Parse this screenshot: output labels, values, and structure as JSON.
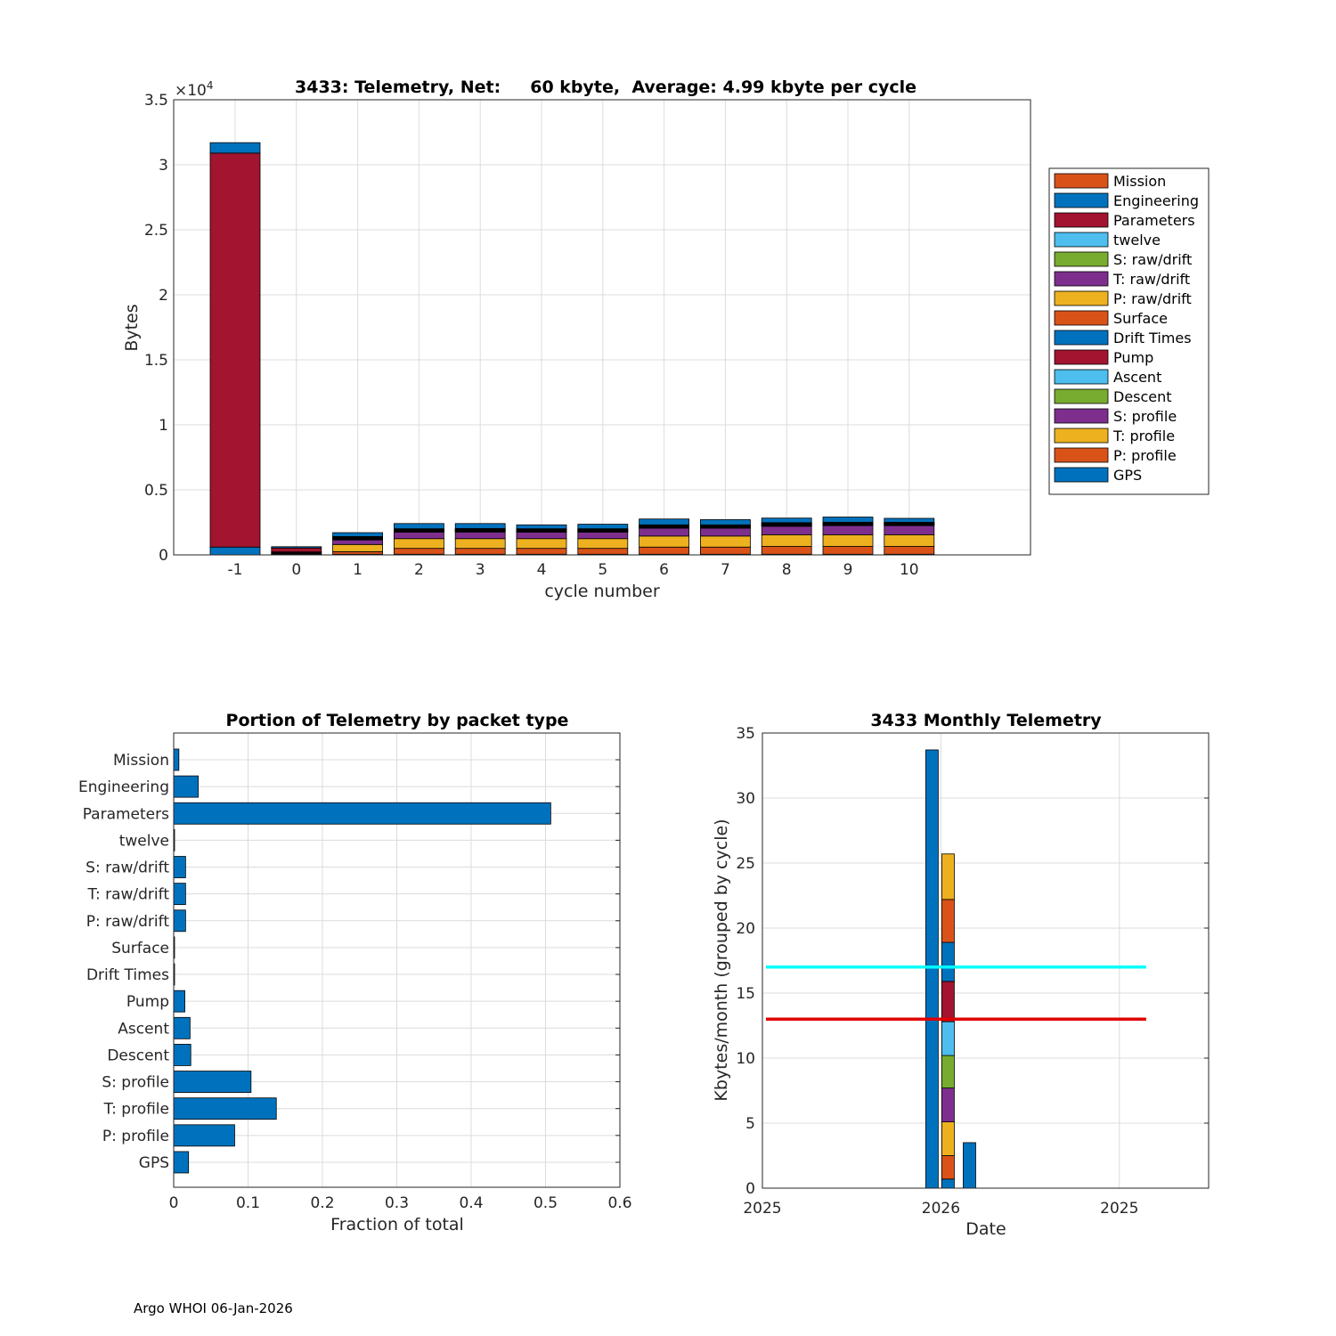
{
  "footer": "Argo WHOI 06-Jan-2026",
  "chart_data": [
    {
      "type": "bar",
      "stacked": true,
      "title": "3433: Telemetry, Net:     60 kbyte,  Average: 4.99 kbyte per cycle",
      "xlabel": "cycle number",
      "ylabel": "Bytes",
      "exponent_label": "×10^4",
      "ylim": [
        0,
        35000
      ],
      "yticks": [
        0,
        5000,
        10000,
        15000,
        20000,
        25000,
        30000,
        35000
      ],
      "ytick_labels": [
        "0",
        "0.5",
        "1",
        "1.5",
        "2",
        "2.5",
        "3",
        "3.5"
      ],
      "grid": true,
      "legend_position": "right",
      "categories": [
        "-1",
        "0",
        "1",
        "2",
        "3",
        "4",
        "5",
        "6",
        "7",
        "8",
        "9",
        "10"
      ],
      "series": [
        {
          "name": "GPS",
          "color": "#0072BD",
          "values": [
            600,
            50,
            50,
            50,
            50,
            50,
            50,
            50,
            50,
            50,
            50,
            50
          ]
        },
        {
          "name": "P: profile",
          "color": "#D95319",
          "values": [
            0,
            60,
            200,
            450,
            450,
            450,
            450,
            550,
            550,
            600,
            600,
            600
          ]
        },
        {
          "name": "T: profile",
          "color": "#EDB120",
          "values": [
            0,
            60,
            550,
            750,
            750,
            750,
            750,
            850,
            850,
            900,
            900,
            900
          ]
        },
        {
          "name": "S: profile",
          "color": "#7E2F8E",
          "values": [
            0,
            60,
            350,
            500,
            500,
            500,
            500,
            600,
            600,
            650,
            700,
            700
          ]
        },
        {
          "name": "Descent",
          "color": "#77AC30",
          "values": [
            0,
            0,
            40,
            40,
            60,
            40,
            40,
            40,
            40,
            40,
            40,
            40
          ]
        },
        {
          "name": "Ascent",
          "color": "#4DBEEE",
          "values": [
            0,
            0,
            40,
            40,
            40,
            40,
            40,
            40,
            40,
            40,
            40,
            40
          ]
        },
        {
          "name": "Pump",
          "color": "#A2142F",
          "values": [
            0,
            0,
            40,
            40,
            40,
            40,
            40,
            40,
            40,
            60,
            40,
            40
          ]
        },
        {
          "name": "Drift Times",
          "color": "#0072BD",
          "values": [
            0,
            0,
            10,
            10,
            10,
            10,
            10,
            10,
            10,
            10,
            10,
            10
          ]
        },
        {
          "name": "Surface",
          "color": "#D95319",
          "values": [
            0,
            0,
            10,
            10,
            10,
            10,
            10,
            10,
            10,
            10,
            10,
            10
          ]
        },
        {
          "name": "P: raw/drift",
          "color": "#EDB120",
          "values": [
            0,
            0,
            40,
            40,
            40,
            40,
            40,
            40,
            40,
            40,
            40,
            40
          ]
        },
        {
          "name": "T: raw/drift",
          "color": "#7E2F8E",
          "values": [
            0,
            0,
            40,
            40,
            40,
            40,
            40,
            40,
            40,
            40,
            40,
            40
          ]
        },
        {
          "name": "S: raw/drift",
          "color": "#77AC30",
          "values": [
            0,
            0,
            40,
            40,
            40,
            40,
            40,
            40,
            40,
            40,
            40,
            40
          ]
        },
        {
          "name": "twelve",
          "color": "#4DBEEE",
          "values": [
            0,
            0,
            0,
            0,
            0,
            0,
            0,
            0,
            0,
            0,
            0,
            0
          ]
        },
        {
          "name": "Parameters",
          "color": "#A2142F",
          "values": [
            30300,
            300,
            0,
            0,
            0,
            0,
            0,
            0,
            0,
            0,
            0,
            0
          ]
        },
        {
          "name": "Engineering",
          "color": "#0072BD",
          "values": [
            800,
            100,
            300,
            400,
            380,
            300,
            350,
            450,
            400,
            350,
            400,
            300
          ]
        },
        {
          "name": "Mission",
          "color": "#D95319",
          "values": [
            0,
            0,
            0,
            0,
            0,
            0,
            0,
            0,
            0,
            0,
            0,
            0
          ]
        }
      ]
    },
    {
      "type": "bar",
      "orientation": "horizontal",
      "title": "Portion of Telemetry by packet type",
      "xlabel": "Fraction of total",
      "ylabel": "",
      "xlim": [
        0,
        0.6
      ],
      "xticks": [
        0,
        0.1,
        0.2,
        0.3,
        0.4,
        0.5,
        0.6
      ],
      "xtick_labels": [
        "0",
        "0.1",
        "0.2",
        "0.3",
        "0.4",
        "0.5",
        "0.6"
      ],
      "grid": true,
      "bar_color": "#0072BD",
      "categories": [
        "Mission",
        "Engineering",
        "Parameters",
        "twelve",
        "S: raw/drift",
        "T: raw/drift",
        "P: raw/drift",
        "Surface",
        "Drift Times",
        "Pump",
        "Ascent",
        "Descent",
        "S: profile",
        "T: profile",
        "P: profile",
        "GPS"
      ],
      "values": [
        0.007,
        0.033,
        0.507,
        0.001,
        0.016,
        0.016,
        0.016,
        0.001,
        0.001,
        0.015,
        0.022,
        0.023,
        0.104,
        0.138,
        0.082,
        0.02
      ]
    },
    {
      "type": "bar",
      "stacked": true,
      "title": "3433 Monthly Telemetry",
      "xlabel": "Date",
      "ylabel": "Kbytes/month (grouped by cycle)",
      "ylim": [
        0,
        35
      ],
      "yticks": [
        0,
        5,
        10,
        15,
        20,
        25,
        30,
        35
      ],
      "ytick_labels": [
        "0",
        "5",
        "10",
        "15",
        "20",
        "25",
        "30",
        "35"
      ],
      "xticks": [
        0,
        1,
        2
      ],
      "xtick_labels": [
        "2025",
        "2026",
        "2025"
      ],
      "xlim": [
        0,
        2.5
      ],
      "grid": true,
      "bars": [
        {
          "x": 0.95,
          "segments": [
            {
              "value": 33.7,
              "color": "#0072BD"
            }
          ]
        },
        {
          "x": 1.04,
          "segments": [
            {
              "value": 0.7,
              "color": "#0072BD"
            },
            {
              "value": 1.8,
              "color": "#D95319"
            },
            {
              "value": 2.6,
              "color": "#EDB120"
            },
            {
              "value": 2.6,
              "color": "#7E2F8E"
            },
            {
              "value": 2.5,
              "color": "#77AC30"
            },
            {
              "value": 2.6,
              "color": "#4DBEEE"
            },
            {
              "value": 3.1,
              "color": "#A2142F"
            },
            {
              "value": 3.0,
              "color": "#0072BD"
            },
            {
              "value": 3.3,
              "color": "#D95319"
            },
            {
              "value": 3.5,
              "color": "#EDB120"
            }
          ]
        },
        {
          "x": 1.16,
          "segments": [
            {
              "value": 3.5,
              "color": "#0072BD"
            }
          ]
        }
      ],
      "reference_lines": [
        {
          "y": 17,
          "color": "#00FFFF",
          "x_from": 0.02,
          "x_to": 2.15
        },
        {
          "y": 13,
          "color": "#E00000",
          "x_from": 0.02,
          "x_to": 2.15
        }
      ]
    }
  ]
}
